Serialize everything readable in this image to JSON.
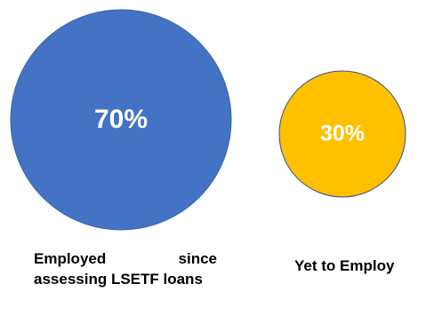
{
  "chart_data": {
    "type": "bubble",
    "title": "",
    "series": [
      {
        "label": "Employed since assessing LSETF loans",
        "value": 70,
        "value_text": "70%",
        "color": "#4472C4"
      },
      {
        "label": "Yet to Employ",
        "value": 30,
        "value_text": "30%",
        "color": "#FFC000"
      }
    ]
  }
}
